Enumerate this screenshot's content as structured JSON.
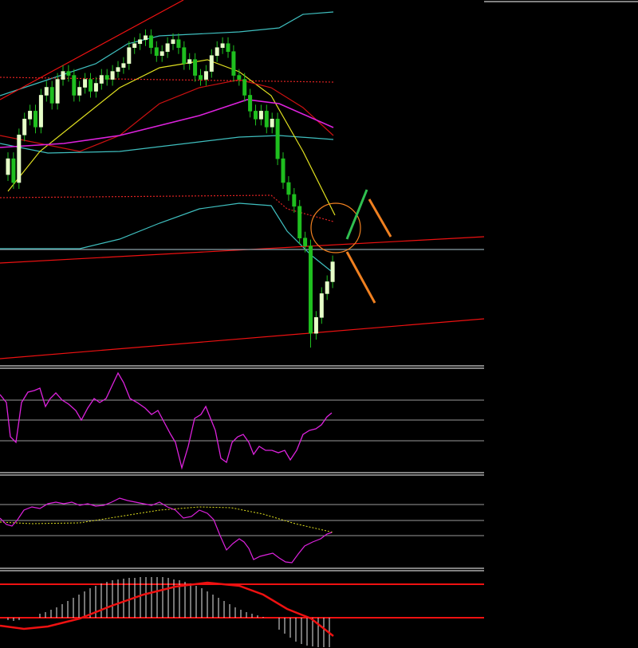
{
  "chart_data": {
    "type": "candlestick",
    "ylim": [
      0,
      460
    ],
    "up_color": "#e6ffc8",
    "down_color": "#1fbf1f",
    "open": [
      240,
      260,
      230,
      290,
      310,
      320,
      300,
      340,
      350,
      330,
      360,
      370,
      365,
      340,
      350,
      360,
      345,
      355,
      365,
      360,
      370,
      375,
      380,
      400,
      405,
      410,
      415,
      400,
      390,
      395,
      405,
      410,
      400,
      380,
      385,
      365,
      360,
      370,
      390,
      400,
      405,
      395,
      365,
      360,
      340,
      320,
      310,
      320,
      300,
      310,
      260,
      230,
      215,
      200,
      160,
      150,
      40,
      60,
      90,
      105
    ],
    "high": [
      268,
      268,
      298,
      318,
      328,
      328,
      348,
      358,
      358,
      368,
      378,
      378,
      373,
      358,
      368,
      368,
      363,
      373,
      373,
      378,
      383,
      388,
      408,
      413,
      418,
      423,
      423,
      408,
      403,
      413,
      418,
      418,
      408,
      393,
      393,
      373,
      378,
      398,
      408,
      413,
      413,
      403,
      373,
      368,
      348,
      328,
      328,
      328,
      318,
      318,
      268,
      238,
      223,
      208,
      168,
      158,
      68,
      98,
      113,
      138
    ],
    "low": [
      232,
      222,
      222,
      282,
      302,
      292,
      292,
      332,
      322,
      322,
      352,
      357,
      332,
      332,
      342,
      337,
      337,
      347,
      352,
      352,
      362,
      367,
      372,
      392,
      397,
      402,
      392,
      382,
      382,
      387,
      397,
      392,
      372,
      372,
      357,
      352,
      352,
      362,
      382,
      392,
      387,
      357,
      352,
      332,
      312,
      302,
      302,
      292,
      292,
      252,
      222,
      207,
      192,
      152,
      142,
      22,
      32,
      52,
      82,
      97
    ],
    "close": [
      260,
      230,
      290,
      310,
      320,
      300,
      340,
      350,
      330,
      360,
      370,
      365,
      340,
      350,
      360,
      345,
      355,
      365,
      360,
      370,
      375,
      380,
      400,
      405,
      410,
      415,
      400,
      390,
      395,
      405,
      410,
      400,
      380,
      385,
      365,
      360,
      370,
      390,
      400,
      405,
      395,
      365,
      360,
      340,
      320,
      310,
      320,
      300,
      310,
      260,
      230,
      215,
      200,
      160,
      150,
      40,
      60,
      90,
      105,
      130
    ]
  }
}
